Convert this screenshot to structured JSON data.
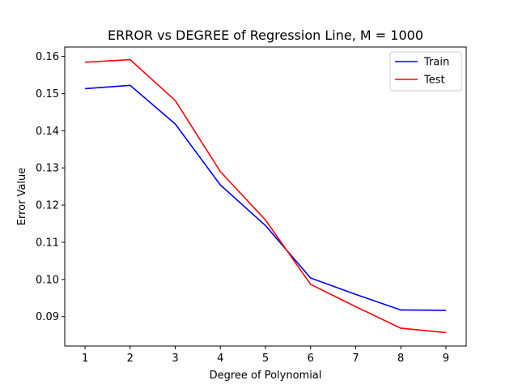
{
  "chart_data": {
    "type": "line",
    "title": "ERROR vs DEGREE of Regression Line, M = 1000",
    "xlabel": "Degree of Polynomial",
    "ylabel": "Error Value",
    "x": [
      1,
      2,
      3,
      4,
      5,
      6,
      7,
      8,
      9
    ],
    "xticks": [
      "1",
      "2",
      "3",
      "4",
      "5",
      "6",
      "7",
      "8",
      "9"
    ],
    "yticks": [
      "0.09",
      "0.10",
      "0.11",
      "0.12",
      "0.13",
      "0.14",
      "0.15",
      "0.16"
    ],
    "ytick_values": [
      0.09,
      0.1,
      0.11,
      0.12,
      0.13,
      0.14,
      0.15,
      0.16
    ],
    "xlim": [
      0.55,
      9.45
    ],
    "ylim": [
      0.0821,
      0.1625
    ],
    "grid": false,
    "legend_position": "top-right",
    "series": [
      {
        "name": "Train",
        "color": "#0000ff",
        "values": [
          0.1513,
          0.1522,
          0.1418,
          0.1254,
          0.1145,
          0.1004,
          0.096,
          0.0918,
          0.0917
        ]
      },
      {
        "name": "Test",
        "color": "#ff0000",
        "values": [
          0.1584,
          0.1591,
          0.1481,
          0.129,
          0.116,
          0.0987,
          0.0927,
          0.0869,
          0.0857
        ]
      }
    ]
  }
}
